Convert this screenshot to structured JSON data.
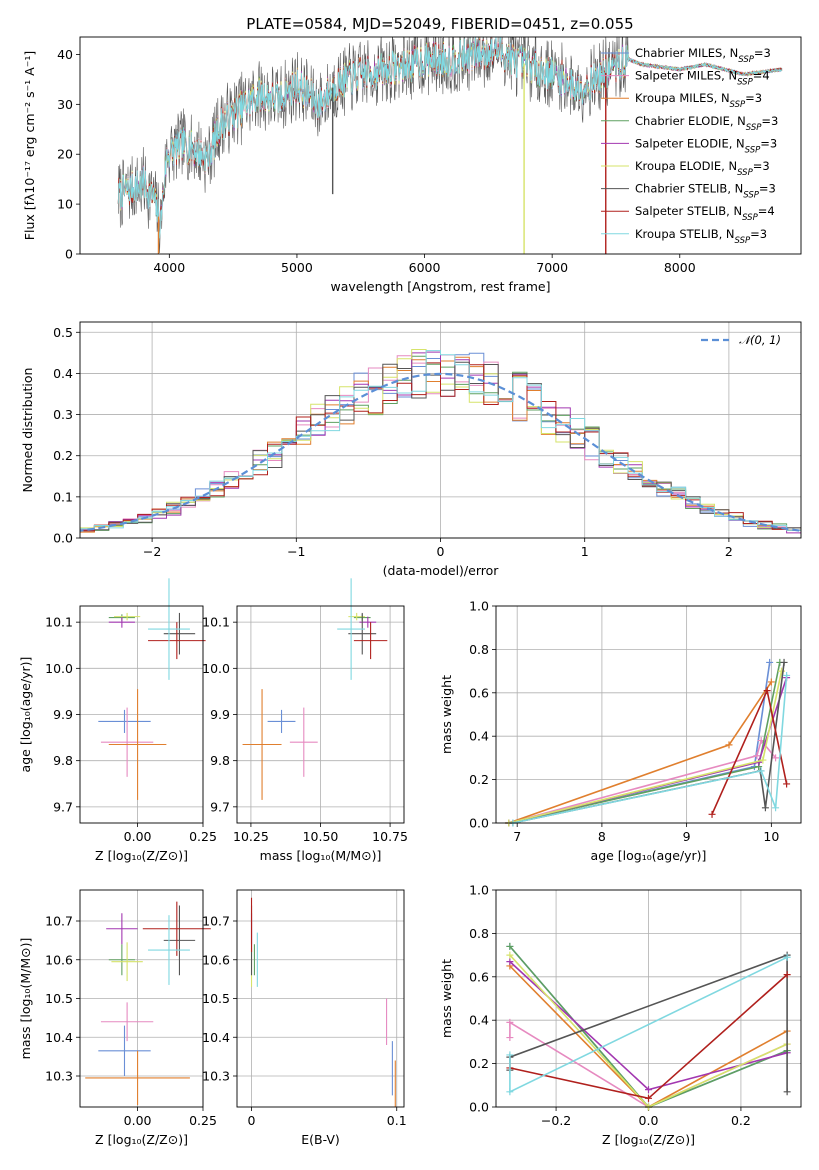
{
  "title": "PLATE=0584, MJD=52049, FIBERID=0451, z=0.055",
  "colors": {
    "Chabrier MILES": "#6a8fd6",
    "Salpeter MILES": "#e68ac0",
    "Kroupa MILES": "#e07f2e",
    "Chabrier ELODIE": "#5fa060",
    "Salpeter ELODIE": "#a237b0",
    "Kroupa ELODIE": "#d6e36a",
    "Chabrier STELIB": "#555555",
    "Salpeter STELIB": "#b0201d",
    "Kroupa STELIB": "#80d8e0"
  },
  "chart_data": [
    {
      "id": "spectrum",
      "type": "line",
      "xlabel": "wavelength [Angstrom, rest frame]",
      "ylabel": "Flux [fλ10⁻¹⁷ erg cm⁻² s⁻¹ A⁻¹]",
      "xlim": [
        3300,
        8950
      ],
      "ylim": [
        0,
        43.5
      ],
      "xticks": [
        "4000",
        "5000",
        "6000",
        "7000",
        "8000"
      ],
      "yticks": [
        "0",
        "10",
        "20",
        "30",
        "40"
      ],
      "legend_position": "top-right",
      "legend": [
        {
          "name": "Chabrier MILES",
          "sub": "SSP",
          "n": "=3"
        },
        {
          "name": "Salpeter MILES",
          "sub": "SSP",
          "n": "=4"
        },
        {
          "name": "Kroupa MILES",
          "sub": "SSP",
          "n": "=3"
        },
        {
          "name": "Chabrier ELODIE",
          "sub": "SSP",
          "n": "=3"
        },
        {
          "name": "Salpeter ELODIE",
          "sub": "SSP",
          "n": "=3"
        },
        {
          "name": "Kroupa ELODIE",
          "sub": "SSP",
          "n": "=3"
        },
        {
          "name": "Chabrier STELIB",
          "sub": "SSP",
          "n": "=3"
        },
        {
          "name": "Salpeter STELIB",
          "sub": "SSP",
          "n": "=4"
        },
        {
          "name": "Kroupa STELIB",
          "sub": "SSP",
          "n": "=3"
        }
      ],
      "continuum": [
        [
          3600,
          12
        ],
        [
          3700,
          13
        ],
        [
          3800,
          14
        ],
        [
          3880,
          11
        ],
        [
          3930,
          6
        ],
        [
          3980,
          20
        ],
        [
          4100,
          22
        ],
        [
          4200,
          21
        ],
        [
          4300,
          19
        ],
        [
          4400,
          26
        ],
        [
          4500,
          28
        ],
        [
          4700,
          32
        ],
        [
          4860,
          31
        ],
        [
          5000,
          34
        ],
        [
          5175,
          30
        ],
        [
          5300,
          34
        ],
        [
          5500,
          36
        ],
        [
          5700,
          37
        ],
        [
          5890,
          38
        ],
        [
          6000,
          39
        ],
        [
          6200,
          39
        ],
        [
          6400,
          40
        ],
        [
          6563,
          41
        ],
        [
          6700,
          39
        ],
        [
          6900,
          37
        ],
        [
          7100,
          35
        ],
        [
          7200,
          33
        ],
        [
          7400,
          36
        ],
        [
          7600,
          39
        ],
        [
          7700,
          38
        ],
        [
          8000,
          37
        ],
        [
          8200,
          38
        ],
        [
          8500,
          36
        ],
        [
          8800,
          37
        ]
      ],
      "drops": [
        {
          "series": "Kroupa MILES",
          "x": 3915,
          "y": 0
        },
        {
          "series": "Kroupa ELODIE",
          "x": 6780,
          "y": 0
        },
        {
          "series": "Salpeter STELIB",
          "x": 7420,
          "y": 0
        },
        {
          "series": "Chabrier STELIB",
          "x": 5280,
          "y": 12
        }
      ]
    },
    {
      "id": "residuals",
      "type": "histogram",
      "xlabel": "(data-model)/error",
      "ylabel": "Normed distribution",
      "xlim": [
        -2.5,
        2.5
      ],
      "ylim": [
        0,
        0.525
      ],
      "xticks": [
        "−2",
        "−1",
        "0",
        "1",
        "2"
      ],
      "yticks": [
        "0.0",
        "0.1",
        "0.2",
        "0.3",
        "0.4",
        "0.5"
      ],
      "reference": {
        "name": "𝒩(0, 1)",
        "mean": 0,
        "sigma": 1
      },
      "bin_width": 0.1
    },
    {
      "id": "age-Z",
      "type": "errorbar",
      "xlabel": "Z [log₁₀(Z/Z⊙)]",
      "ylabel": "age  [log₁₀(age/yr)]",
      "xlim": [
        -0.22,
        0.25
      ],
      "ylim": [
        9.665,
        10.135
      ],
      "xticks": [
        "0.00",
        "0.25"
      ],
      "xtickvals": [
        0.0,
        0.25
      ],
      "yticks": [
        "9.7",
        "9.8",
        "9.9",
        "10.0",
        "10.1"
      ],
      "ytickvals": [
        9.7,
        9.8,
        9.9,
        10.0,
        10.1
      ],
      "points": [
        {
          "s": "Chabrier MILES",
          "x": -0.05,
          "y": 9.885,
          "xe": 0.1,
          "ye": 0.025
        },
        {
          "s": "Salpeter MILES",
          "x": -0.04,
          "y": 9.84,
          "xe": 0.1,
          "ye": 0.075
        },
        {
          "s": "Kroupa MILES",
          "x": 0.0,
          "y": 9.835,
          "xe": 0.11,
          "ye": 0.12
        },
        {
          "s": "Chabrier ELODIE",
          "x": -0.06,
          "y": 10.11,
          "xe": 0.05,
          "ye": 0.007
        },
        {
          "s": "Salpeter ELODIE",
          "x": -0.06,
          "y": 10.1,
          "xe": 0.05,
          "ye": 0.012
        },
        {
          "s": "Kroupa ELODIE",
          "x": -0.04,
          "y": 10.112,
          "xe": 0.05,
          "ye": 0.008
        },
        {
          "s": "Chabrier STELIB",
          "x": 0.16,
          "y": 10.075,
          "xe": 0.06,
          "ye": 0.045
        },
        {
          "s": "Salpeter STELIB",
          "x": 0.15,
          "y": 10.06,
          "xe": 0.11,
          "ye": 0.04
        },
        {
          "s": "Kroupa STELIB",
          "x": 0.12,
          "y": 10.085,
          "xe": 0.08,
          "ye": 0.11
        }
      ]
    },
    {
      "id": "age-mass",
      "type": "errorbar",
      "xlabel": "mass [log₁₀(M/M⊙)]",
      "ylabel": "",
      "xlim": [
        10.2,
        10.8
      ],
      "ylim": [
        9.665,
        10.135
      ],
      "xticks": [
        "10.25",
        "10.50",
        "10.75"
      ],
      "xtickvals": [
        10.25,
        10.5,
        10.75
      ],
      "yticks": [
        "9.7",
        "9.8",
        "9.9",
        "10.0",
        "10.1"
      ],
      "ytickvals": [
        9.7,
        9.8,
        9.9,
        10.0,
        10.1
      ],
      "points": [
        {
          "s": "Chabrier MILES",
          "x": 10.36,
          "y": 9.885,
          "xe": 0.05,
          "ye": 0.025
        },
        {
          "s": "Salpeter MILES",
          "x": 10.44,
          "y": 9.84,
          "xe": 0.05,
          "ye": 0.075
        },
        {
          "s": "Kroupa MILES",
          "x": 10.29,
          "y": 9.835,
          "xe": 0.07,
          "ye": 0.12
        },
        {
          "s": "Chabrier ELODIE",
          "x": 10.65,
          "y": 10.11,
          "xe": 0.03,
          "ye": 0.007
        },
        {
          "s": "Salpeter ELODIE",
          "x": 10.67,
          "y": 10.1,
          "xe": 0.03,
          "ye": 0.012
        },
        {
          "s": "Kroupa ELODIE",
          "x": 10.63,
          "y": 10.112,
          "xe": 0.03,
          "ye": 0.008
        },
        {
          "s": "Chabrier STELIB",
          "x": 10.65,
          "y": 10.075,
          "xe": 0.05,
          "ye": 0.045
        },
        {
          "s": "Salpeter STELIB",
          "x": 10.68,
          "y": 10.06,
          "xe": 0.06,
          "ye": 0.04
        },
        {
          "s": "Kroupa STELIB",
          "x": 10.61,
          "y": 10.085,
          "xe": 0.05,
          "ye": 0.11
        }
      ]
    },
    {
      "id": "weight-age",
      "type": "line",
      "xlabel": "age  [log₁₀(age/yr)]",
      "ylabel": "mass weight",
      "xlim": [
        6.75,
        10.35
      ],
      "ylim": [
        0,
        1.0
      ],
      "xticks": [
        "7",
        "8",
        "9",
        "10"
      ],
      "xtickvals": [
        7,
        8,
        9,
        10
      ],
      "yticks": [
        "0.0",
        "0.2",
        "0.4",
        "0.6",
        "0.8",
        "1.0"
      ],
      "ytickvals": [
        0,
        0.2,
        0.4,
        0.6,
        0.8,
        1.0
      ],
      "series": [
        {
          "name": "Chabrier MILES",
          "x": [
            6.9,
            9.8,
            9.98
          ],
          "y": [
            0.0,
            0.26,
            0.74
          ]
        },
        {
          "name": "Salpeter MILES",
          "x": [
            6.9,
            9.83,
            9.88,
            10.05
          ],
          "y": [
            0.0,
            0.31,
            0.38,
            0.3
          ]
        },
        {
          "name": "Kroupa MILES",
          "x": [
            6.9,
            9.5,
            10.0
          ],
          "y": [
            0.0,
            0.36,
            0.65
          ]
        },
        {
          "name": "Chabrier ELODIE",
          "x": [
            6.9,
            9.85,
            10.1
          ],
          "y": [
            0.0,
            0.26,
            0.74
          ]
        },
        {
          "name": "Salpeter ELODIE",
          "x": [
            6.9,
            9.85,
            10.18
          ],
          "y": [
            0.0,
            0.28,
            0.67
          ]
        },
        {
          "name": "Kroupa ELODIE",
          "x": [
            6.9,
            9.9,
            10.12
          ],
          "y": [
            0.0,
            0.29,
            0.7
          ]
        },
        {
          "name": "Chabrier STELIB",
          "x": [
            6.95,
            9.87,
            9.93,
            10.15
          ],
          "y": [
            0.0,
            0.24,
            0.07,
            0.74
          ]
        },
        {
          "name": "Salpeter STELIB",
          "x": [
            9.3,
            9.95,
            10.18
          ],
          "y": [
            0.04,
            0.61,
            0.18
          ]
        },
        {
          "name": "Kroupa STELIB",
          "x": [
            6.95,
            9.88,
            10.05,
            10.18
          ],
          "y": [
            0.0,
            0.24,
            0.07,
            0.68
          ]
        }
      ]
    },
    {
      "id": "mass-Z",
      "type": "errorbar",
      "xlabel": "Z [log₁₀(Z/Z⊙)]",
      "ylabel": "mass [log₁₀(M/M⊙)]",
      "xlim": [
        -0.22,
        0.25
      ],
      "ylim": [
        10.22,
        10.78
      ],
      "xticks": [
        "0.00",
        "0.25"
      ],
      "xtickvals": [
        0.0,
        0.25
      ],
      "yticks": [
        "10.3",
        "10.4",
        "10.5",
        "10.6",
        "10.7"
      ],
      "ytickvals": [
        10.3,
        10.4,
        10.5,
        10.6,
        10.7
      ],
      "points": [
        {
          "s": "Chabrier MILES",
          "x": -0.05,
          "y": 10.365,
          "xe": 0.1,
          "ye": 0.065
        },
        {
          "s": "Salpeter MILES",
          "x": -0.04,
          "y": 10.44,
          "xe": 0.1,
          "ye": 0.05
        },
        {
          "s": "Kroupa MILES",
          "x": 0.0,
          "y": 10.295,
          "xe": 0.2,
          "ye": 0.07
        },
        {
          "s": "Chabrier ELODIE",
          "x": -0.06,
          "y": 10.6,
          "xe": 0.05,
          "ye": 0.04
        },
        {
          "s": "Salpeter ELODIE",
          "x": -0.06,
          "y": 10.68,
          "xe": 0.06,
          "ye": 0.04
        },
        {
          "s": "Kroupa ELODIE",
          "x": -0.04,
          "y": 10.595,
          "xe": 0.06,
          "ye": 0.05
        },
        {
          "s": "Chabrier STELIB",
          "x": 0.16,
          "y": 10.65,
          "xe": 0.06,
          "ye": 0.09
        },
        {
          "s": "Salpeter STELIB",
          "x": 0.15,
          "y": 10.68,
          "xe": 0.13,
          "ye": 0.07
        },
        {
          "s": "Kroupa STELIB",
          "x": 0.12,
          "y": 10.625,
          "xe": 0.08,
          "ye": 0.09
        }
      ]
    },
    {
      "id": "mass-EBV",
      "type": "errorbar",
      "xlabel": "E(B-V)",
      "ylabel": "",
      "xlim": [
        -0.01,
        0.105
      ],
      "ylim": [
        10.22,
        10.78
      ],
      "xticks": [
        "0",
        "0.1"
      ],
      "xtickvals": [
        0,
        0.1
      ],
      "yticks": [
        "10.3",
        "10.4",
        "10.5",
        "10.6",
        "10.7"
      ],
      "ytickvals": [
        10.3,
        10.4,
        10.5,
        10.6,
        10.7
      ],
      "points": [
        {
          "s": "Chabrier MILES",
          "x": 0.097,
          "y": 10.32,
          "xe": 0.0,
          "ye": 0.07
        },
        {
          "s": "Salpeter MILES",
          "x": 0.093,
          "y": 10.44,
          "xe": 0.0,
          "ye": 0.06
        },
        {
          "s": "Kroupa MILES",
          "x": 0.099,
          "y": 10.28,
          "xe": 0.0,
          "ye": 0.06
        },
        {
          "s": "Chabrier ELODIE",
          "x": 0.002,
          "y": 10.6,
          "xe": 0.0,
          "ye": 0.04
        },
        {
          "s": "Salpeter ELODIE",
          "x": 0.0,
          "y": 10.68,
          "xe": 0.0,
          "ye": 0.04
        },
        {
          "s": "Kroupa ELODIE",
          "x": 0.0,
          "y": 10.58,
          "xe": 0.0,
          "ye": 0.05
        },
        {
          "s": "Chabrier STELIB",
          "x": 0.0,
          "y": 10.65,
          "xe": 0.0,
          "ye": 0.09
        },
        {
          "s": "Salpeter STELIB",
          "x": 0.0,
          "y": 10.69,
          "xe": 0.0,
          "ye": 0.07
        },
        {
          "s": "Kroupa STELIB",
          "x": 0.004,
          "y": 10.6,
          "xe": 0.0,
          "ye": 0.07
        }
      ]
    },
    {
      "id": "weight-Z",
      "type": "line",
      "xlabel": "Z [log₁₀(Z/Z⊙)]",
      "ylabel": "mass weight",
      "xlim": [
        -0.33,
        0.33
      ],
      "ylim": [
        0,
        1.0
      ],
      "xticks": [
        "−0.2",
        "0.0",
        "0.2"
      ],
      "xtickvals": [
        -0.2,
        0.0,
        0.2
      ],
      "yticks": [
        "0.0",
        "0.2",
        "0.4",
        "0.6",
        "0.8",
        "1.0"
      ],
      "ytickvals": [
        0,
        0.2,
        0.4,
        0.6,
        0.8,
        1.0
      ],
      "series": [
        {
          "name": "Chabrier MILES",
          "x": [
            -0.3,
            0.0,
            0.3
          ],
          "y": [
            0.74,
            0.0,
            0.26
          ]
        },
        {
          "name": "Salpeter MILES",
          "x": [
            -0.3,
            -0.3,
            0.0,
            0.3
          ],
          "y": [
            0.32,
            0.39,
            0.0,
            0.29
          ]
        },
        {
          "name": "Kroupa MILES",
          "x": [
            -0.3,
            0.0,
            0.3
          ],
          "y": [
            0.65,
            0.0,
            0.35
          ]
        },
        {
          "name": "Chabrier ELODIE",
          "x": [
            -0.3,
            0.0,
            0.3
          ],
          "y": [
            0.74,
            0.0,
            0.26
          ]
        },
        {
          "name": "Salpeter ELODIE",
          "x": [
            -0.3,
            0.0,
            0.3
          ],
          "y": [
            0.67,
            0.08,
            0.25
          ]
        },
        {
          "name": "Kroupa ELODIE",
          "x": [
            -0.3,
            0.0,
            0.3
          ],
          "y": [
            0.7,
            0.0,
            0.29
          ]
        },
        {
          "name": "Chabrier STELIB",
          "x": [
            -0.3,
            -0.3,
            0.3,
            0.3
          ],
          "y": [
            0.17,
            0.23,
            0.7,
            0.07
          ]
        },
        {
          "name": "Salpeter STELIB",
          "x": [
            -0.3,
            0.0,
            0.3
          ],
          "y": [
            0.18,
            0.04,
            0.61
          ]
        },
        {
          "name": "Kroupa STELIB",
          "x": [
            -0.3,
            -0.3,
            0.3
          ],
          "y": [
            0.24,
            0.07,
            0.69
          ]
        }
      ]
    }
  ]
}
